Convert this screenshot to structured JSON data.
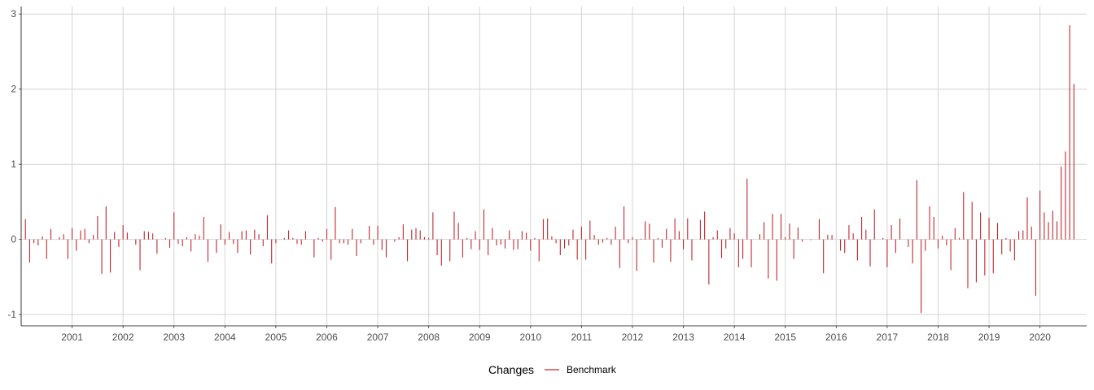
{
  "chart_data": {
    "type": "bar",
    "title": "",
    "xlabel": "",
    "ylabel": "",
    "x_start": "2000-02",
    "x_step": "1 month",
    "x_tick_labels": [
      "2001",
      "2002",
      "2003",
      "2004",
      "2005",
      "2006",
      "2007",
      "2008",
      "2009",
      "2010",
      "2011",
      "2012",
      "2013",
      "2014",
      "2015",
      "2016",
      "2017",
      "2018",
      "2019",
      "2020"
    ],
    "y_ticks": [
      -1,
      0,
      1,
      2,
      3
    ],
    "ylim": [
      -1.15,
      3.1
    ],
    "xlim": [
      "2000-01",
      "2020-12"
    ],
    "grid": true,
    "legend": {
      "title": "Changes",
      "position": "bottom"
    },
    "series": [
      {
        "name": "Benchmark",
        "color": "#c1272d",
        "values": [
          0.27,
          -0.31,
          -0.05,
          -0.08,
          0.04,
          -0.26,
          0.14,
          0.0,
          0.03,
          0.07,
          -0.26,
          0.15,
          -0.15,
          0.12,
          0.14,
          -0.05,
          0.06,
          0.31,
          -0.46,
          0.44,
          -0.44,
          0.1,
          -0.1,
          0.19,
          0.09,
          0.0,
          -0.07,
          -0.41,
          0.11,
          0.1,
          0.08,
          -0.19,
          0.0,
          0.02,
          -0.11,
          0.36,
          -0.06,
          -0.09,
          0.03,
          -0.16,
          0.07,
          0.05,
          0.3,
          -0.3,
          0.0,
          -0.18,
          0.2,
          -0.07,
          0.1,
          -0.06,
          -0.18,
          0.11,
          0.12,
          -0.2,
          0.13,
          0.07,
          -0.09,
          0.32,
          -0.32,
          -0.05,
          0.0,
          0.02,
          0.12,
          0.02,
          -0.06,
          -0.07,
          0.11,
          0.0,
          -0.24,
          0.02,
          -0.03,
          0.14,
          -0.27,
          0.43,
          -0.05,
          -0.05,
          -0.07,
          0.14,
          -0.22,
          -0.05,
          0.0,
          0.18,
          -0.07,
          0.18,
          -0.14,
          -0.24,
          0.0,
          -0.03,
          0.03,
          0.2,
          -0.29,
          0.13,
          0.15,
          0.12,
          0.03,
          0.02,
          0.36,
          -0.21,
          -0.35,
          0.0,
          -0.29,
          0.37,
          0.22,
          -0.24,
          0.02,
          -0.13,
          0.11,
          -0.14,
          0.4,
          -0.21,
          0.15,
          -0.08,
          -0.07,
          -0.12,
          0.12,
          -0.14,
          -0.13,
          0.11,
          0.09,
          -0.15,
          0.02,
          -0.29,
          0.27,
          0.28,
          0.04,
          -0.05,
          -0.21,
          -0.12,
          -0.08,
          0.13,
          -0.27,
          0.17,
          -0.27,
          0.25,
          0.06,
          -0.07,
          -0.04,
          0.02,
          -0.07,
          0.17,
          -0.38,
          0.44,
          -0.05,
          0.03,
          -0.42,
          0.01,
          0.24,
          0.21,
          -0.31,
          0.02,
          -0.11,
          0.14,
          -0.3,
          0.28,
          0.11,
          -0.13,
          0.28,
          -0.28,
          0.0,
          0.26,
          0.37,
          -0.6,
          0.03,
          0.12,
          -0.25,
          -0.12,
          0.15,
          0.08,
          -0.37,
          -0.26,
          0.81,
          -0.37,
          0.0,
          0.07,
          0.23,
          -0.52,
          0.34,
          -0.55,
          0.34,
          0.03,
          0.21,
          -0.26,
          0.16,
          -0.03,
          0.0,
          -0.01,
          0.0,
          0.27,
          -0.45,
          0.06,
          0.06,
          0.0,
          -0.15,
          -0.18,
          0.19,
          0.08,
          -0.28,
          0.3,
          0.13,
          -0.36,
          0.4,
          0.0,
          0.02,
          -0.37,
          0.19,
          -0.18,
          0.28,
          0.0,
          -0.1,
          -0.32,
          0.79,
          -0.98,
          -0.15,
          0.44,
          0.3,
          -0.12,
          0.05,
          -0.08,
          -0.41,
          0.15,
          0.02,
          0.63,
          -0.65,
          0.5,
          -0.57,
          0.36,
          -0.48,
          0.29,
          -0.45,
          0.22,
          -0.2,
          0.02,
          -0.16,
          -0.28,
          0.11,
          0.12,
          0.56,
          0.17,
          -0.75,
          0.65,
          0.36,
          0.23,
          0.38,
          0.24,
          0.97,
          1.17,
          2.85,
          2.07
        ]
      }
    ]
  }
}
